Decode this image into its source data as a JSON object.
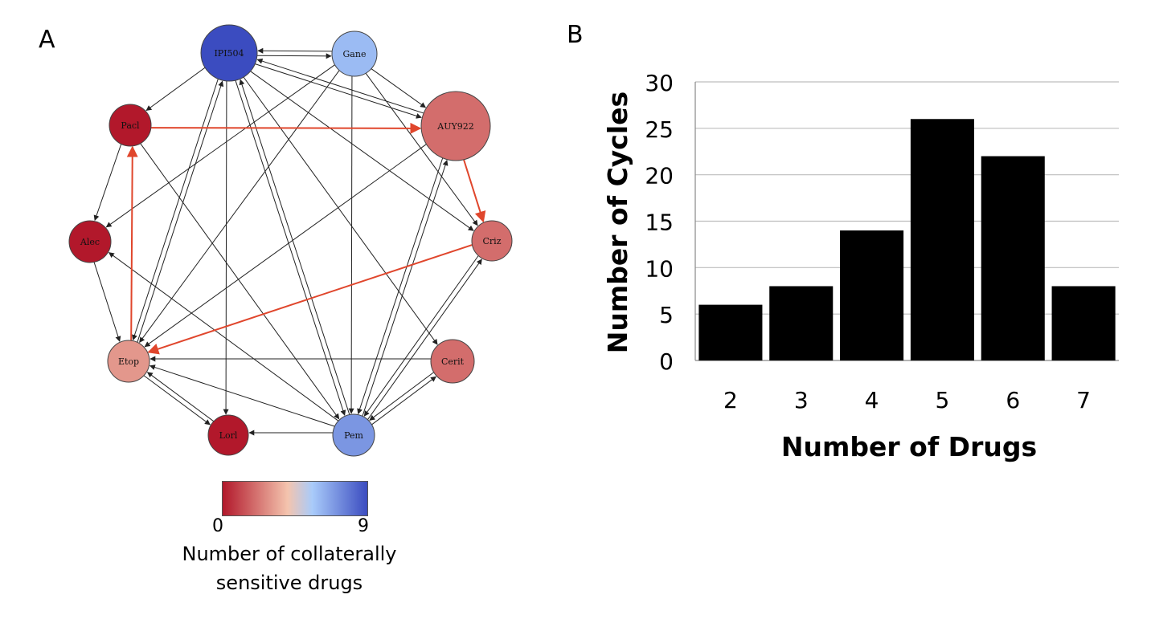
{
  "panels": {
    "a_label": "A",
    "b_label": "B"
  },
  "network": {
    "nodes": [
      {
        "id": "IPI504",
        "label": "IPI504",
        "value": 9
      },
      {
        "id": "Gane",
        "label": "Gane",
        "value": 6
      },
      {
        "id": "AUY922",
        "label": "AUY922",
        "value": 2
      },
      {
        "id": "Pacl",
        "label": "Pacl",
        "value": 0
      },
      {
        "id": "Criz",
        "label": "Criz",
        "value": 2
      },
      {
        "id": "Alec",
        "label": "Alec",
        "value": 0
      },
      {
        "id": "Etop",
        "label": "Etop",
        "value": 3
      },
      {
        "id": "Cerit",
        "label": "Cerit",
        "value": 2
      },
      {
        "id": "Lorl",
        "label": "Lorl",
        "value": 0
      },
      {
        "id": "Pem",
        "label": "Pem",
        "value": 7
      }
    ],
    "edges": [
      [
        "IPI504",
        "Gane"
      ],
      [
        "Gane",
        "IPI504"
      ],
      [
        "IPI504",
        "AUY922"
      ],
      [
        "IPI504",
        "Pacl"
      ],
      [
        "IPI504",
        "Etop"
      ],
      [
        "Etop",
        "IPI504"
      ],
      [
        "IPI504",
        "Lorl"
      ],
      [
        "IPI504",
        "Pem"
      ],
      [
        "IPI504",
        "Cerit"
      ],
      [
        "IPI504",
        "Criz"
      ],
      [
        "Gane",
        "AUY922"
      ],
      [
        "Gane",
        "Alec"
      ],
      [
        "Gane",
        "Etop"
      ],
      [
        "Gane",
        "Pem"
      ],
      [
        "Gane",
        "Criz"
      ],
      [
        "Pacl",
        "Alec"
      ],
      [
        "Pacl",
        "Pem"
      ],
      [
        "Etop",
        "Pacl"
      ],
      [
        "AUY922",
        "IPI504"
      ],
      [
        "AUY922",
        "Etop"
      ],
      [
        "AUY922",
        "Pem"
      ],
      [
        "Pem",
        "AUY922"
      ],
      [
        "Alec",
        "Etop"
      ],
      [
        "Etop",
        "Lorl"
      ],
      [
        "Lorl",
        "Etop"
      ],
      [
        "Pem",
        "Lorl"
      ],
      [
        "Pem",
        "Alec"
      ],
      [
        "Pem",
        "Etop"
      ],
      [
        "Pem",
        "Criz"
      ],
      [
        "Criz",
        "Pem"
      ],
      [
        "Cerit",
        "Pem"
      ],
      [
        "Pem",
        "Cerit"
      ],
      [
        "Cerit",
        "Etop"
      ],
      [
        "Pem",
        "IPI504"
      ]
    ],
    "cycle_edges": [
      [
        "Pacl",
        "AUY922"
      ],
      [
        "AUY922",
        "Criz"
      ],
      [
        "Criz",
        "Etop"
      ],
      [
        "Etop",
        "Pacl"
      ]
    ],
    "edge_color": "#222222",
    "cycle_color": "#e0462c"
  },
  "colorbar": {
    "min_label": "0",
    "max_label": "9",
    "title_line1": "Number of collaterally",
    "title_line2": "sensitive drugs",
    "colors": [
      "#b2182b",
      "#f4c4ae",
      "#a9cbfa",
      "#3b4cc0"
    ]
  },
  "chart_data": {
    "type": "bar",
    "categories": [
      "2",
      "3",
      "4",
      "5",
      "6",
      "7"
    ],
    "values": [
      6,
      8,
      14,
      26,
      22,
      8
    ],
    "xlabel": "Number of Drugs",
    "ylabel": "Number of Cycles",
    "ylim": [
      0,
      30
    ],
    "yticks": [
      "0",
      "5",
      "10",
      "15",
      "20",
      "25",
      "30"
    ],
    "grid": true,
    "bar_color": "#000000"
  }
}
